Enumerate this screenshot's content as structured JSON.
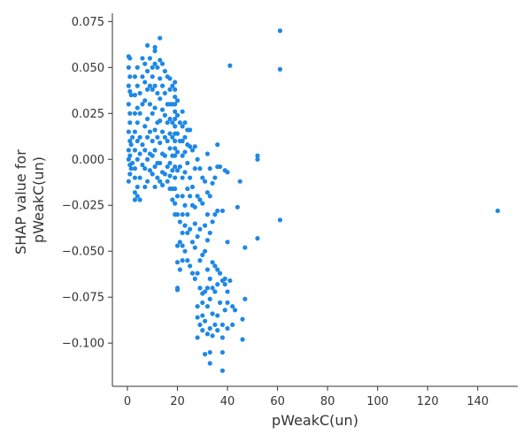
{
  "chart_data": {
    "type": "scatter",
    "title": "",
    "xlabel": "pWeakC(un)",
    "ylabel_lines": [
      "SHAP value for",
      "pWeakC(un)"
    ],
    "xlim": [
      -6,
      156
    ],
    "ylim": [
      -0.1235,
      0.0795
    ],
    "x_ticks": [
      0,
      20,
      40,
      60,
      80,
      100,
      120,
      140
    ],
    "y_ticks": [
      -0.1,
      -0.075,
      -0.05,
      -0.025,
      0.0,
      0.025,
      0.05,
      0.075
    ],
    "x_tick_labels": [
      "0",
      "20",
      "40",
      "60",
      "80",
      "100",
      "120",
      "140"
    ],
    "y_tick_labels": [
      "−0.100",
      "−0.075",
      "−0.050",
      "−0.025",
      "0.000",
      "0.025",
      "0.050",
      "0.075"
    ],
    "grid": false,
    "point_color": "#1E88E5",
    "points": [
      [
        0.5,
        0.056
      ],
      [
        1,
        0.055
      ],
      [
        0.5,
        0.05
      ],
      [
        1,
        0.045
      ],
      [
        0.5,
        0.04
      ],
      [
        1,
        0.037
      ],
      [
        1.5,
        0.035
      ],
      [
        0.5,
        0.03
      ],
      [
        1,
        0.025
      ],
      [
        1,
        0.02
      ],
      [
        0.5,
        0.015
      ],
      [
        1,
        0.01
      ],
      [
        1.5,
        0.008
      ],
      [
        0.5,
        0.005
      ],
      [
        1,
        0.002
      ],
      [
        0.5,
        0.0
      ],
      [
        1,
        -0.003
      ],
      [
        1.5,
        -0.005
      ],
      [
        1,
        -0.008
      ],
      [
        0.5,
        -0.012
      ],
      [
        2,
        -0.002
      ],
      [
        2,
        0.012
      ],
      [
        3,
        -0.018
      ],
      [
        3,
        -0.022
      ],
      [
        4,
        -0.02
      ],
      [
        4,
        -0.015
      ],
      [
        3,
        -0.01
      ],
      [
        3,
        -0.005
      ],
      [
        4,
        0.0
      ],
      [
        3,
        0.005
      ],
      [
        4,
        0.01
      ],
      [
        3,
        0.015
      ],
      [
        4,
        0.02
      ],
      [
        3,
        0.025
      ],
      [
        4,
        0.028
      ],
      [
        3,
        0.035
      ],
      [
        4,
        0.04
      ],
      [
        3,
        0.045
      ],
      [
        4,
        0.05
      ],
      [
        5,
        0.036
      ],
      [
        5,
        0.025
      ],
      [
        5,
        0.012
      ],
      [
        5,
        0.003
      ],
      [
        5,
        -0.01
      ],
      [
        5,
        -0.022
      ],
      [
        6,
        -0.003
      ],
      [
        6,
        0.008
      ],
      [
        6,
        0.03
      ],
      [
        6,
        0.045
      ],
      [
        6,
        0.055
      ],
      [
        7,
        0.052
      ],
      [
        7,
        0.042
      ],
      [
        7,
        0.032
      ],
      [
        7,
        0.018
      ],
      [
        7,
        0.005
      ],
      [
        7,
        -0.005
      ],
      [
        7,
        -0.015
      ],
      [
        8,
        0.062
      ],
      [
        8,
        0.048
      ],
      [
        8,
        0.038
      ],
      [
        8,
        0.022
      ],
      [
        8,
        0.012
      ],
      [
        8,
        0.0
      ],
      [
        8,
        -0.012
      ],
      [
        9,
        0.055
      ],
      [
        9,
        0.04
      ],
      [
        9,
        0.03
      ],
      [
        9,
        0.015
      ],
      [
        9,
        0.003
      ],
      [
        9,
        -0.006
      ],
      [
        10,
        0.05
      ],
      [
        10,
        0.045
      ],
      [
        10,
        0.038
      ],
      [
        10,
        0.025
      ],
      [
        10,
        0.01
      ],
      [
        10,
        0.002
      ],
      [
        10,
        -0.008
      ],
      [
        11,
        0.061
      ],
      [
        11,
        0.059
      ],
      [
        11,
        0.052
      ],
      [
        11,
        0.04
      ],
      [
        11,
        0.028
      ],
      [
        11,
        0.016
      ],
      [
        11,
        0.005
      ],
      [
        11,
        -0.004
      ],
      [
        11,
        -0.015
      ],
      [
        12,
        0.05
      ],
      [
        12,
        0.036
      ],
      [
        12,
        0.02
      ],
      [
        12,
        0.012
      ],
      [
        12,
        -0.002
      ],
      [
        12,
        -0.01
      ],
      [
        13,
        0.066
      ],
      [
        13,
        0.054
      ],
      [
        13,
        0.044
      ],
      [
        13,
        0.033
      ],
      [
        13,
        0.021
      ],
      [
        13,
        0.009
      ],
      [
        13,
        -0.002
      ],
      [
        13,
        -0.012
      ],
      [
        14,
        0.052
      ],
      [
        14,
        0.04
      ],
      [
        14,
        0.027
      ],
      [
        14,
        0.015
      ],
      [
        14,
        0.003
      ],
      [
        14,
        -0.007
      ],
      [
        14,
        -0.014
      ],
      [
        15,
        0.048
      ],
      [
        15,
        0.036
      ],
      [
        15,
        0.024
      ],
      [
        15,
        0.012
      ],
      [
        15,
        0.002
      ],
      [
        15,
        -0.008
      ],
      [
        16,
        0.045
      ],
      [
        16,
        0.03
      ],
      [
        16,
        0.02
      ],
      [
        16,
        0.01
      ],
      [
        16,
        -0.004
      ],
      [
        16,
        -0.012
      ],
      [
        17,
        0.044
      ],
      [
        17,
        0.038
      ],
      [
        17,
        0.03
      ],
      [
        17,
        0.022
      ],
      [
        17,
        0.014
      ],
      [
        17,
        0.006
      ],
      [
        17,
        -0.002
      ],
      [
        17,
        -0.009
      ],
      [
        17,
        -0.016
      ],
      [
        18,
        0.04
      ],
      [
        18,
        0.03
      ],
      [
        18,
        0.02
      ],
      [
        18,
        0.012
      ],
      [
        18,
        0.002
      ],
      [
        18,
        -0.006
      ],
      [
        18,
        -0.016
      ],
      [
        18,
        -0.022
      ],
      [
        19,
        0.042
      ],
      [
        19,
        0.038
      ],
      [
        19,
        0.034
      ],
      [
        19,
        0.03
      ],
      [
        19,
        0.026
      ],
      [
        19,
        0.022
      ],
      [
        19,
        0.018
      ],
      [
        19,
        0.014
      ],
      [
        19,
        0.01
      ],
      [
        19,
        0.006
      ],
      [
        19,
        0.002
      ],
      [
        19,
        -0.004
      ],
      [
        19,
        -0.01
      ],
      [
        19,
        -0.016
      ],
      [
        19,
        -0.024
      ],
      [
        19,
        -0.03
      ],
      [
        20,
        0.032
      ],
      [
        20,
        0.024
      ],
      [
        20,
        0.014
      ],
      [
        20,
        0.004
      ],
      [
        20,
        -0.006
      ],
      [
        20,
        -0.02
      ],
      [
        20,
        -0.03
      ],
      [
        20,
        -0.047
      ],
      [
        20,
        -0.056
      ],
      [
        20,
        -0.07
      ],
      [
        20,
        -0.071
      ],
      [
        21,
        0.02
      ],
      [
        21,
        0.01
      ],
      [
        21,
        -0.004
      ],
      [
        21,
        -0.034
      ],
      [
        21,
        -0.045
      ],
      [
        21,
        -0.06
      ],
      [
        22,
        0.026
      ],
      [
        22,
        0.018
      ],
      [
        22,
        0.01
      ],
      [
        22,
        0.002
      ],
      [
        22,
        -0.01
      ],
      [
        22,
        -0.02
      ],
      [
        22,
        -0.03
      ],
      [
        22,
        -0.04
      ],
      [
        22,
        -0.047
      ],
      [
        22,
        -0.055
      ],
      [
        23,
        0.02
      ],
      [
        23,
        0.012
      ],
      [
        23,
        0.004
      ],
      [
        23,
        -0.007
      ],
      [
        23,
        -0.025
      ],
      [
        23,
        -0.036
      ],
      [
        23,
        -0.05
      ],
      [
        24,
        0.016
      ],
      [
        24,
        0.008
      ],
      [
        24,
        -0.002
      ],
      [
        24,
        -0.016
      ],
      [
        24,
        -0.03
      ],
      [
        24,
        -0.04
      ],
      [
        24,
        -0.055
      ],
      [
        25,
        0.016
      ],
      [
        25,
        0.007
      ],
      [
        25,
        -0.01
      ],
      [
        25,
        -0.02
      ],
      [
        25,
        -0.038
      ],
      [
        25,
        -0.058
      ],
      [
        26,
        0.005
      ],
      [
        26,
        -0.015
      ],
      [
        26,
        -0.025
      ],
      [
        26,
        -0.045
      ],
      [
        26,
        -0.062
      ],
      [
        27,
        0.007
      ],
      [
        27,
        -0.005
      ],
      [
        27,
        -0.026
      ],
      [
        27,
        -0.035
      ],
      [
        27,
        -0.048
      ],
      [
        27,
        -0.065
      ],
      [
        28,
        0.0
      ],
      [
        28,
        -0.02
      ],
      [
        28,
        -0.042
      ],
      [
        28,
        -0.062
      ],
      [
        28,
        -0.08
      ],
      [
        28,
        -0.086
      ],
      [
        28,
        -0.097
      ],
      [
        29,
        -0.005
      ],
      [
        29,
        -0.022
      ],
      [
        29,
        -0.038
      ],
      [
        29,
        -0.055
      ],
      [
        29,
        -0.07
      ],
      [
        29,
        -0.09
      ],
      [
        30,
        -0.01
      ],
      [
        30,
        -0.024
      ],
      [
        30,
        -0.052
      ],
      [
        30,
        -0.073
      ],
      [
        30,
        -0.078
      ],
      [
        30,
        -0.085
      ],
      [
        30,
        -0.093
      ],
      [
        31,
        -0.012
      ],
      [
        31,
        -0.036
      ],
      [
        31,
        -0.05
      ],
      [
        31,
        -0.072
      ],
      [
        31,
        -0.088
      ],
      [
        31,
        -0.106
      ],
      [
        32,
        0.003
      ],
      [
        32,
        -0.018
      ],
      [
        32,
        -0.03
      ],
      [
        32,
        -0.044
      ],
      [
        32,
        -0.06
      ],
      [
        32,
        -0.07
      ],
      [
        32,
        -0.08
      ],
      [
        32,
        -0.095
      ],
      [
        33,
        -0.005
      ],
      [
        33,
        -0.02
      ],
      [
        33,
        -0.04
      ],
      [
        33,
        -0.065
      ],
      [
        33,
        -0.076
      ],
      [
        33,
        -0.092
      ],
      [
        33,
        -0.105
      ],
      [
        33,
        -0.111
      ],
      [
        34,
        -0.013
      ],
      [
        34,
        -0.034
      ],
      [
        34,
        -0.056
      ],
      [
        34,
        -0.07
      ],
      [
        34,
        -0.084
      ],
      [
        34,
        -0.096
      ],
      [
        35,
        -0.01
      ],
      [
        35,
        -0.03
      ],
      [
        35,
        -0.058
      ],
      [
        35,
        -0.072
      ],
      [
        35,
        -0.09
      ],
      [
        36,
        0.008
      ],
      [
        36,
        -0.004
      ],
      [
        36,
        -0.028
      ],
      [
        36,
        -0.06
      ],
      [
        36,
        -0.068
      ],
      [
        36,
        -0.085
      ],
      [
        36,
        -0.093
      ],
      [
        37,
        -0.004
      ],
      [
        37,
        -0.062
      ],
      [
        37,
        -0.078
      ],
      [
        38,
        -0.028
      ],
      [
        38,
        -0.066
      ],
      [
        38,
        -0.09
      ],
      [
        38,
        -0.097
      ],
      [
        38,
        -0.105
      ],
      [
        38,
        -0.115
      ],
      [
        39,
        -0.006
      ],
      [
        39,
        -0.065
      ],
      [
        39,
        -0.068
      ],
      [
        39,
        -0.082
      ],
      [
        40,
        -0.007
      ],
      [
        40,
        -0.045
      ],
      [
        40,
        -0.072
      ],
      [
        40,
        -0.078
      ],
      [
        40,
        -0.092
      ],
      [
        41,
        0.051
      ],
      [
        41,
        -0.066
      ],
      [
        42,
        -0.08
      ],
      [
        42,
        -0.09
      ],
      [
        43,
        -0.082
      ],
      [
        44,
        -0.026
      ],
      [
        45,
        -0.012
      ],
      [
        46,
        -0.087
      ],
      [
        46,
        -0.098
      ],
      [
        47,
        -0.048
      ],
      [
        47,
        -0.076
      ],
      [
        52,
        0.002
      ],
      [
        52,
        0.0
      ],
      [
        52,
        -0.043
      ],
      [
        61,
        0.07
      ],
      [
        61,
        0.049
      ],
      [
        61,
        -0.033
      ],
      [
        148,
        -0.028
      ]
    ]
  }
}
